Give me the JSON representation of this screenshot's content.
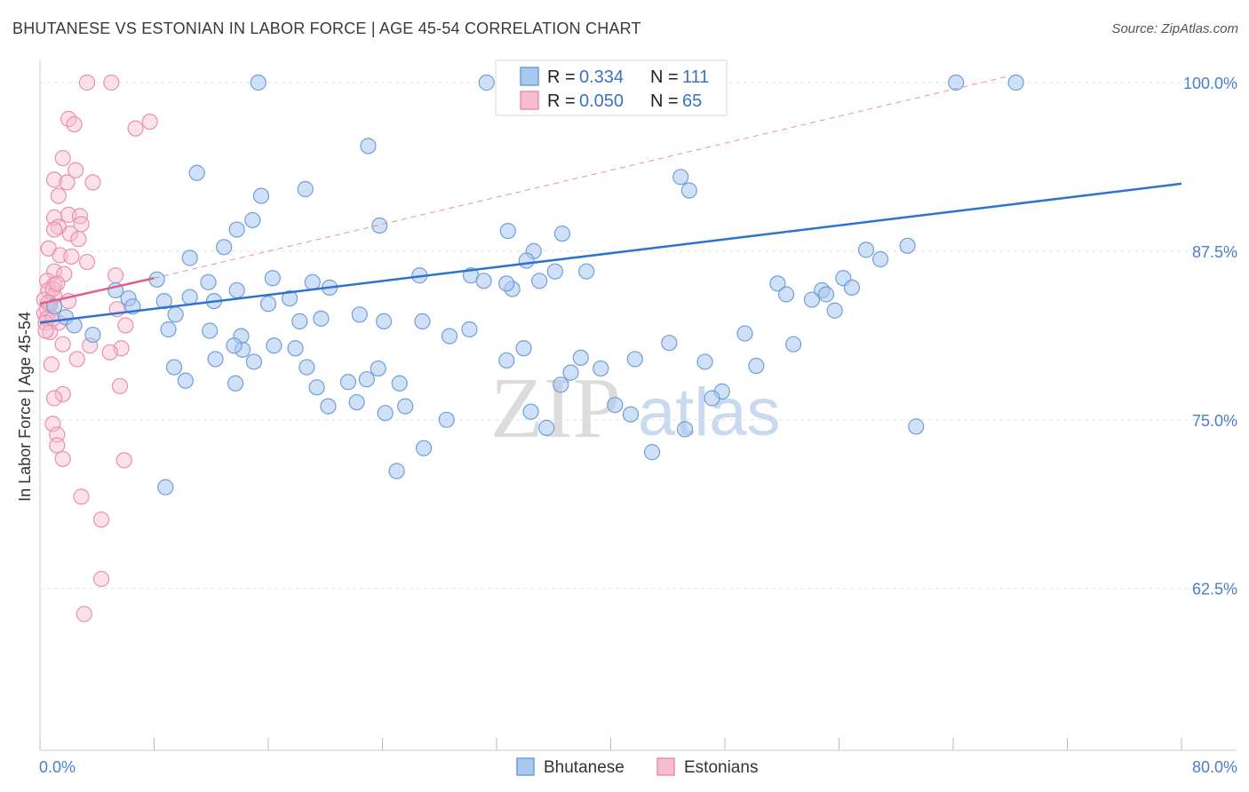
{
  "header": {
    "title": "BHUTANESE VS ESTONIAN IN LABOR FORCE | AGE 45-54 CORRELATION CHART",
    "source": "Source: ZipAtlas.com"
  },
  "watermark": {
    "zip": "ZIP",
    "atlas": "atlas"
  },
  "legend": {
    "r_label": "R =",
    "n_label": "N =",
    "rows": [
      {
        "name": "Bhutanese",
        "r": "0.334",
        "n": "111"
      },
      {
        "name": "Estonians",
        "r": "0.050",
        "n": "65"
      }
    ]
  },
  "colors": {
    "blue_fill": "#a9c8f0",
    "blue_stroke": "#6f9fd8",
    "blue_line": "#2f73d0",
    "pink_fill": "#f6bdd0",
    "pink_stroke": "#ea8fae",
    "pink_line": "#e0608a",
    "grid": "#e3e3e3",
    "tick_text": "#4a7fc8"
  },
  "chart_data": {
    "type": "scatter",
    "title": "BHUTANESE VS ESTONIAN IN LABOR FORCE | AGE 45-54 CORRELATION CHART",
    "xlabel": "",
    "ylabel": "In Labor Force | Age 45-54",
    "xlim": [
      0,
      80
    ],
    "ylim": [
      50.5,
      102.5
    ],
    "x_tick_labels": [
      "0.0%",
      "80.0%"
    ],
    "y_ticks": [
      62.5,
      75.0,
      87.5,
      100.0
    ],
    "y_tick_labels": [
      "62.5%",
      "75.0%",
      "87.5%",
      "100.0%"
    ],
    "grid": true,
    "legend_position": "top-center",
    "series": [
      {
        "name": "Bhutanese",
        "trend": {
          "x": [
            0,
            80
          ],
          "y": [
            82.2,
            92.5
          ],
          "style": "solid"
        },
        "points": [
          [
            15.3,
            100
          ],
          [
            31.3,
            100
          ],
          [
            64.2,
            100
          ],
          [
            68.4,
            100
          ],
          [
            23.0,
            95.3
          ],
          [
            11.0,
            93.3
          ],
          [
            44.9,
            93.0
          ],
          [
            45.5,
            92.0
          ],
          [
            18.6,
            92.1
          ],
          [
            15.5,
            91.6
          ],
          [
            14.9,
            89.8
          ],
          [
            23.8,
            89.4
          ],
          [
            32.8,
            89.0
          ],
          [
            36.6,
            88.8
          ],
          [
            34.6,
            87.5
          ],
          [
            34.1,
            86.8
          ],
          [
            36.1,
            86.0
          ],
          [
            38.3,
            86.0
          ],
          [
            26.6,
            85.7
          ],
          [
            30.2,
            85.7
          ],
          [
            31.1,
            85.3
          ],
          [
            33.1,
            84.7
          ],
          [
            32.7,
            85.1
          ],
          [
            35.0,
            85.3
          ],
          [
            12.9,
            87.8
          ],
          [
            13.8,
            89.1
          ],
          [
            10.5,
            87.0
          ],
          [
            8.2,
            85.4
          ],
          [
            6.2,
            84.0
          ],
          [
            5.3,
            84.6
          ],
          [
            6.5,
            83.4
          ],
          [
            8.7,
            83.8
          ],
          [
            10.5,
            84.1
          ],
          [
            11.8,
            85.2
          ],
          [
            12.2,
            83.8
          ],
          [
            13.8,
            84.6
          ],
          [
            14.1,
            81.2
          ],
          [
            16.3,
            85.5
          ],
          [
            16.0,
            83.6
          ],
          [
            17.5,
            84.0
          ],
          [
            19.1,
            85.2
          ],
          [
            20.3,
            84.8
          ],
          [
            22.4,
            82.8
          ],
          [
            24.1,
            82.3
          ],
          [
            9.5,
            82.8
          ],
          [
            9.0,
            81.7
          ],
          [
            11.9,
            81.6
          ],
          [
            9.4,
            78.9
          ],
          [
            10.2,
            77.9
          ],
          [
            12.3,
            79.5
          ],
          [
            13.7,
            77.7
          ],
          [
            14.2,
            80.2
          ],
          [
            13.6,
            80.5
          ],
          [
            15.0,
            79.3
          ],
          [
            16.4,
            80.5
          ],
          [
            17.9,
            80.3
          ],
          [
            18.2,
            82.3
          ],
          [
            19.7,
            82.5
          ],
          [
            18.7,
            78.9
          ],
          [
            19.4,
            77.4
          ],
          [
            20.2,
            76.0
          ],
          [
            21.6,
            77.8
          ],
          [
            22.2,
            76.3
          ],
          [
            22.9,
            78.0
          ],
          [
            23.7,
            78.8
          ],
          [
            25.2,
            77.7
          ],
          [
            24.2,
            75.5
          ],
          [
            25.6,
            76.0
          ],
          [
            26.8,
            82.3
          ],
          [
            28.7,
            81.2
          ],
          [
            30.1,
            81.7
          ],
          [
            33.9,
            80.3
          ],
          [
            32.7,
            79.4
          ],
          [
            37.9,
            79.6
          ],
          [
            37.2,
            78.5
          ],
          [
            36.5,
            77.6
          ],
          [
            39.3,
            78.8
          ],
          [
            34.4,
            75.6
          ],
          [
            35.5,
            74.4
          ],
          [
            25.0,
            71.2
          ],
          [
            26.9,
            72.9
          ],
          [
            28.5,
            75.0
          ],
          [
            8.8,
            70.0
          ],
          [
            44.1,
            80.7
          ],
          [
            46.6,
            79.3
          ],
          [
            50.2,
            79.0
          ],
          [
            47.8,
            77.1
          ],
          [
            49.4,
            81.4
          ],
          [
            51.7,
            85.1
          ],
          [
            52.3,
            84.3
          ],
          [
            54.8,
            84.6
          ],
          [
            55.1,
            84.3
          ],
          [
            56.3,
            85.5
          ],
          [
            57.9,
            87.6
          ],
          [
            58.9,
            86.9
          ],
          [
            60.8,
            87.9
          ],
          [
            56.9,
            84.8
          ],
          [
            52.8,
            80.6
          ],
          [
            54.1,
            83.9
          ],
          [
            55.7,
            83.1
          ],
          [
            45.2,
            74.3
          ],
          [
            61.4,
            74.5
          ],
          [
            42.9,
            72.6
          ],
          [
            47.1,
            76.6
          ],
          [
            40.3,
            76.1
          ],
          [
            41.4,
            75.4
          ],
          [
            41.7,
            79.5
          ],
          [
            1.0,
            83.4
          ],
          [
            1.8,
            82.6
          ],
          [
            2.4,
            82.0
          ],
          [
            3.7,
            81.3
          ]
        ]
      },
      {
        "name": "Estonians",
        "trend": {
          "x": [
            0,
            8
          ],
          "y": [
            83.6,
            85.5
          ],
          "style": "solid-then-dashed",
          "dash_x": [
            8,
            68
          ],
          "dash_y": [
            85.5,
            100.5
          ]
        },
        "points": [
          [
            3.3,
            100
          ],
          [
            5.0,
            100
          ],
          [
            2.0,
            97.3
          ],
          [
            2.4,
            96.9
          ],
          [
            6.7,
            96.6
          ],
          [
            7.7,
            97.1
          ],
          [
            1.6,
            94.4
          ],
          [
            2.5,
            93.5
          ],
          [
            1.0,
            92.8
          ],
          [
            1.9,
            92.6
          ],
          [
            3.7,
            92.6
          ],
          [
            1.3,
            91.6
          ],
          [
            2.0,
            90.2
          ],
          [
            1.0,
            90.0
          ],
          [
            2.8,
            90.1
          ],
          [
            1.3,
            89.3
          ],
          [
            1.0,
            89.1
          ],
          [
            2.9,
            89.5
          ],
          [
            2.1,
            88.8
          ],
          [
            2.7,
            88.4
          ],
          [
            0.6,
            87.7
          ],
          [
            1.4,
            87.2
          ],
          [
            2.2,
            87.1
          ],
          [
            3.3,
            86.7
          ],
          [
            1.0,
            86.0
          ],
          [
            1.7,
            85.8
          ],
          [
            0.5,
            85.3
          ],
          [
            1.0,
            85.0
          ],
          [
            0.6,
            84.6
          ],
          [
            1.0,
            84.2
          ],
          [
            0.3,
            83.9
          ],
          [
            0.7,
            83.5
          ],
          [
            0.5,
            83.2
          ],
          [
            0.3,
            82.9
          ],
          [
            0.5,
            82.5
          ],
          [
            0.4,
            82.2
          ],
          [
            1.3,
            82.2
          ],
          [
            0.7,
            81.5
          ],
          [
            1.6,
            80.6
          ],
          [
            3.5,
            80.5
          ],
          [
            5.7,
            80.3
          ],
          [
            2.6,
            79.5
          ],
          [
            0.8,
            79.1
          ],
          [
            5.6,
            77.5
          ],
          [
            1.6,
            76.9
          ],
          [
            1.0,
            76.6
          ],
          [
            0.9,
            74.7
          ],
          [
            1.2,
            73.9
          ],
          [
            1.2,
            73.1
          ],
          [
            1.6,
            72.1
          ],
          [
            5.9,
            72.0
          ],
          [
            2.9,
            69.3
          ],
          [
            4.3,
            67.6
          ],
          [
            4.3,
            63.2
          ],
          [
            3.1,
            60.6
          ],
          [
            4.9,
            80.0
          ],
          [
            5.3,
            85.7
          ],
          [
            0.9,
            84.7
          ],
          [
            0.6,
            83.7
          ],
          [
            1.2,
            85.1
          ],
          [
            2.0,
            83.8
          ],
          [
            0.4,
            81.6
          ],
          [
            5.4,
            83.2
          ],
          [
            6.0,
            82.0
          ],
          [
            0.9,
            82.5
          ]
        ]
      }
    ]
  }
}
